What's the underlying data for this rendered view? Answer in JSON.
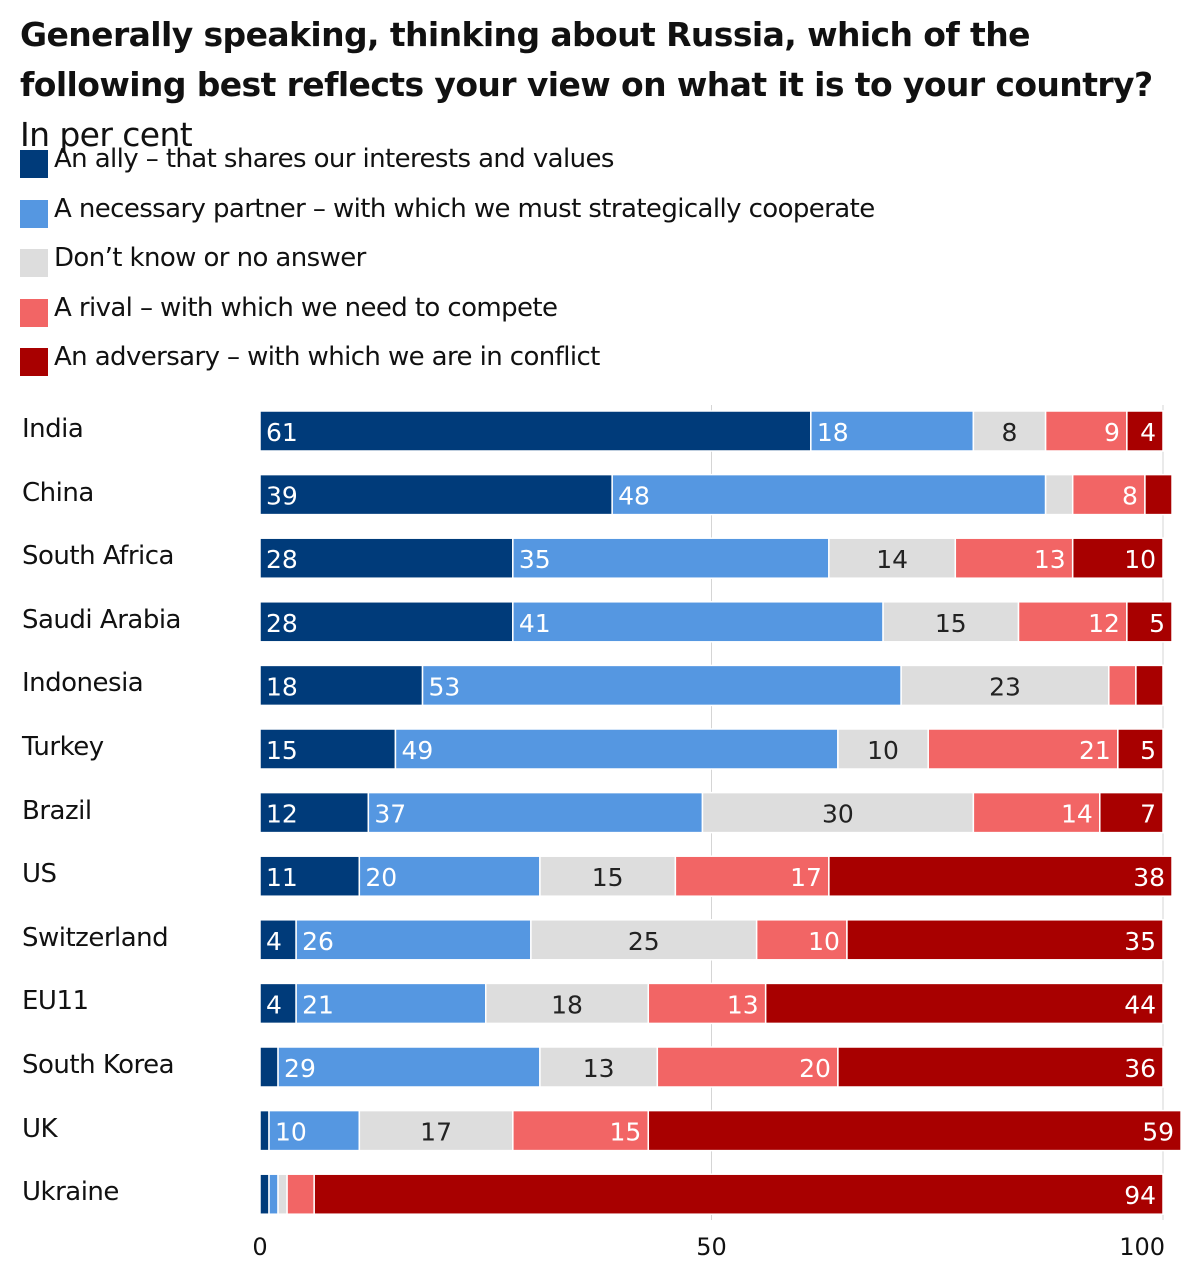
{
  "chart_data": {
    "type": "bar",
    "orientation": "horizontal",
    "stacked": true,
    "title": "Generally speaking, thinking about Russia, which of the following best reflects your view on what it is to your country?",
    "subtitle": "In per cent",
    "categories": [
      "India",
      "China",
      "South Africa",
      "Saudi Arabia",
      "Indonesia",
      "Turkey",
      "Brazil",
      "US",
      "Switzerland",
      "EU11",
      "South Korea",
      "UK",
      "Ukraine"
    ],
    "series": [
      {
        "name": "An ally – that shares our interests and values",
        "color": "#003b7a",
        "values": [
          61,
          39,
          28,
          28,
          18,
          15,
          12,
          11,
          4,
          4,
          2,
          1,
          1
        ],
        "labels": [
          "61",
          "39",
          "28",
          "28",
          "18",
          "15",
          "12",
          "11",
          "4",
          "4",
          "",
          "",
          ""
        ]
      },
      {
        "name": "A necessary partner – with which we must strategically cooperate",
        "color": "#5597e1",
        "values": [
          18,
          48,
          35,
          41,
          53,
          49,
          37,
          20,
          26,
          21,
          29,
          10,
          1
        ],
        "labels": [
          "18",
          "48",
          "35",
          "41",
          "53",
          "49",
          "37",
          "20",
          "26",
          "21",
          "29",
          "10",
          ""
        ]
      },
      {
        "name": "Don’t know or no answer",
        "color": "#dddddd",
        "values": [
          8,
          3,
          14,
          15,
          23,
          10,
          30,
          15,
          25,
          18,
          13,
          17,
          1
        ],
        "labels": [
          "8",
          "",
          "14",
          "15",
          "23",
          "10",
          "30",
          "15",
          "25",
          "18",
          "13",
          "17",
          ""
        ]
      },
      {
        "name": "A rival – with which we need to compete",
        "color": "#f26565",
        "values": [
          9,
          8,
          13,
          12,
          3,
          21,
          14,
          17,
          10,
          13,
          20,
          15,
          3
        ],
        "labels": [
          "9",
          "8",
          "13",
          "12",
          "",
          "21",
          "14",
          "17",
          "10",
          "13",
          "20",
          "15",
          ""
        ]
      },
      {
        "name": "An adversary – with which we are in conflict",
        "color": "#a80000",
        "values": [
          4,
          3,
          10,
          5,
          3,
          5,
          7,
          38,
          35,
          44,
          36,
          59,
          94
        ],
        "labels": [
          "4",
          "",
          "10",
          "5",
          "",
          "5",
          "7",
          "38",
          "35",
          "44",
          "36",
          "59",
          "94"
        ]
      }
    ],
    "xlim": [
      0,
      100
    ],
    "xticks": [
      "0",
      "50",
      "100"
    ],
    "legend_position": "top-left",
    "grid": "vertical gridlines at 50 and 100"
  }
}
